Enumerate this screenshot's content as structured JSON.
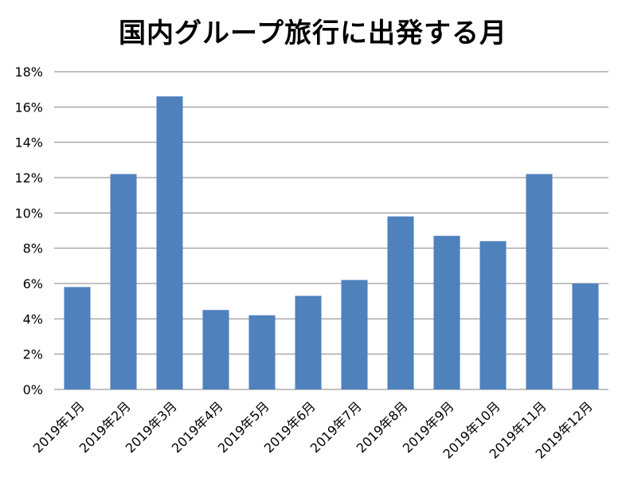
{
  "chart_data": {
    "type": "bar",
    "title": "国内グループ旅行に出発する月",
    "xlabel": "",
    "ylabel": "",
    "categories": [
      "2019年1月",
      "2019年2月",
      "2019年3月",
      "2019年4月",
      "2019年5月",
      "2019年6月",
      "2019年7月",
      "2019年8月",
      "2019年9月",
      "2019年10月",
      "2019年11月",
      "2019年12月"
    ],
    "values": [
      5.8,
      12.2,
      16.6,
      4.5,
      4.2,
      5.3,
      6.2,
      9.8,
      8.7,
      8.4,
      12.2,
      6.0
    ],
    "ylim": [
      0,
      18
    ],
    "yticks": [
      0,
      2,
      4,
      6,
      8,
      10,
      12,
      14,
      16,
      18
    ],
    "ytick_labels": [
      "0%",
      "2%",
      "4%",
      "6%",
      "8%",
      "10%",
      "12%",
      "14%",
      "16%",
      "18%"
    ],
    "grid": true,
    "legend": "none",
    "bar_color": "#4F81BD",
    "grid_color": "#868686"
  }
}
